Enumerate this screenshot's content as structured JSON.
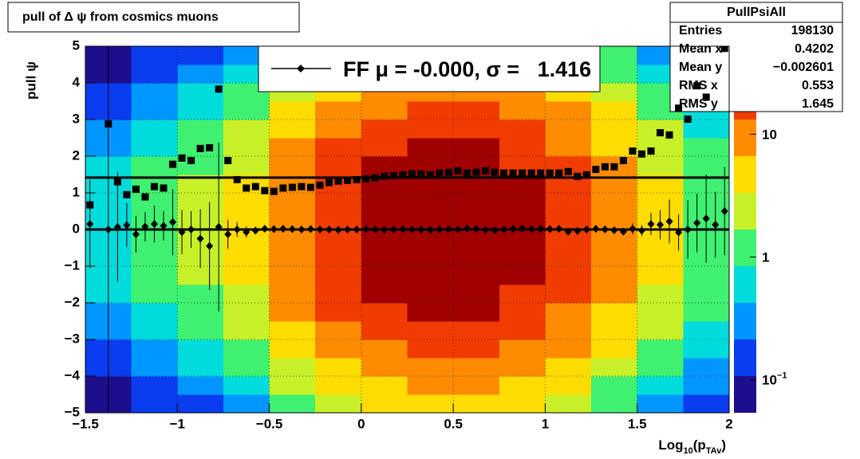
{
  "chart_data": {
    "type": "heatmap",
    "title": "pull of Δ ψ from cosmics muons",
    "ylabel": "pull ψ",
    "xlabel": [
      "Log",
      "10",
      "(p",
      "TAv",
      ")"
    ],
    "xlim": [
      -1.5,
      2
    ],
    "ylim": [
      -5,
      5
    ],
    "xticks": [
      {
        "value": -1.5,
        "label": "−1.5"
      },
      {
        "value": -1,
        "label": "−1"
      },
      {
        "value": -0.5,
        "label": "−0.5"
      },
      0,
      0.5,
      1,
      1.5,
      2
    ],
    "yticks": [
      {
        "value": -5,
        "label": "−5"
      },
      {
        "value": -4,
        "label": "−4"
      },
      {
        "value": -3,
        "label": "−3"
      },
      {
        "value": -2,
        "label": "−2"
      },
      {
        "value": -1,
        "label": "−1"
      },
      0,
      1,
      2,
      3,
      4,
      5
    ],
    "grid": true,
    "xbins": [
      -1.5,
      -1.25,
      -1,
      -0.75,
      -0.5,
      -0.25,
      0,
      0.25,
      0.5,
      0.75,
      1,
      1.25,
      1.5,
      1.75,
      2
    ],
    "ybins": [
      -5,
      -4.5,
      -4,
      -3.5,
      -3,
      -2.5,
      -2,
      -1.5,
      -1,
      -0.5,
      0,
      0.5,
      1,
      1.5,
      2,
      2.5,
      3,
      3.5,
      4,
      4.5,
      5
    ],
    "z": [
      [
        0.06,
        0.09,
        0.14,
        0.2,
        0.27,
        0.36,
        0.44,
        0.51,
        0.56,
        0.6,
        0.6,
        0.56,
        0.51,
        0.44,
        0.36,
        0.27,
        0.2,
        0.14,
        0.09,
        0.06
      ],
      [
        0.12,
        0.19,
        0.28,
        0.4,
        0.55,
        0.71,
        0.87,
        1,
        1.1,
        1.2,
        1.2,
        1.1,
        1,
        0.87,
        0.71,
        0.55,
        0.4,
        0.28,
        0.19,
        0.12
      ],
      [
        0.19,
        0.31,
        0.47,
        0.67,
        0.92,
        1.2,
        1.5,
        1.7,
        1.9,
        2,
        2,
        1.9,
        1.7,
        1.5,
        1.2,
        0.92,
        0.67,
        0.47,
        0.31,
        0.19
      ],
      [
        0.39,
        0.62,
        0.94,
        1.3,
        1.8,
        2.4,
        2.9,
        3.4,
        3.8,
        4,
        4,
        3.8,
        3.4,
        2.9,
        2.4,
        1.8,
        1.3,
        0.94,
        0.62,
        0.39
      ],
      [
        1.2,
        1.9,
        2.8,
        4,
        5.5,
        7.1,
        8.7,
        10,
        11,
        12,
        12,
        11,
        10,
        8.7,
        7.1,
        5.5,
        4,
        2.8,
        1.9,
        1.2
      ],
      [
        2.4,
        3.9,
        5.9,
        8.4,
        11,
        15,
        18,
        21,
        24,
        25,
        25,
        24,
        21,
        18,
        15,
        11,
        8.4,
        5.9,
        3.9,
        2.4
      ],
      [
        3.9,
        6.2,
        9.4,
        13,
        18,
        24,
        29,
        34,
        38,
        40,
        40,
        38,
        34,
        29,
        24,
        18,
        13,
        9.4,
        6.2,
        3.9
      ],
      [
        4.7,
        7.4,
        11,
        16,
        22,
        28,
        35,
        41,
        45,
        48,
        48,
        45,
        41,
        35,
        28,
        22,
        16,
        11,
        7.4,
        4.7
      ],
      [
        4.4,
        7,
        11,
        15,
        21,
        27,
        33,
        38,
        42,
        45,
        45,
        42,
        38,
        33,
        27,
        21,
        15,
        11,
        7,
        4.4
      ],
      [
        3.4,
        5.4,
        8.2,
        12,
        16,
        21,
        26,
        30,
        33,
        35,
        35,
        33,
        30,
        26,
        21,
        16,
        12,
        8.2,
        5.4,
        3.4
      ],
      [
        2.1,
        3.4,
        5.1,
        7.4,
        10,
        13,
        16,
        19,
        21,
        22,
        22,
        21,
        19,
        16,
        13,
        10,
        7.4,
        5.1,
        3.4,
        2.1
      ],
      [
        0.97,
        1.6,
        2.3,
        3.4,
        4.6,
        5.9,
        7.3,
        8.5,
        9.4,
        10,
        10,
        9.4,
        8.5,
        7.3,
        5.9,
        4.6,
        3.4,
        2.3,
        1.6,
        0.97
      ],
      [
        0.39,
        0.62,
        0.94,
        1.3,
        1.8,
        2.4,
        2.9,
        3.4,
        3.8,
        4,
        4,
        3.8,
        3.4,
        2.9,
        2.4,
        1.8,
        1.3,
        0.94,
        0.62,
        0.39
      ],
      [
        0.15,
        0.23,
        0.35,
        0.5,
        0.69,
        0.89,
        1.1,
        1.3,
        1.4,
        1.5,
        1.5,
        1.4,
        1.3,
        1.1,
        0.89,
        0.69,
        0.5,
        0.35,
        0.23,
        0.15
      ]
    ],
    "zlim": [
      0.054,
      52
    ],
    "zlog": true,
    "zticks": [
      {
        "value": 0.1,
        "label": "10",
        "exponent": "−1"
      },
      1,
      {
        "value": 10,
        "label": "10"
      }
    ],
    "palette": [
      "#1d0f8c",
      "#0a3cf0",
      "#0096ff",
      "#00dcdc",
      "#40f070",
      "#c8f028",
      "#ffdc00",
      "#ff8c00",
      "#f03c00",
      "#a00000"
    ],
    "series": [
      {
        "marker": "square",
        "color": "#000000",
        "x": [
          -1.475,
          -1.375,
          -1.325,
          -1.275,
          -1.225,
          -1.175,
          -1.125,
          -1.075,
          -1.025,
          -0.975,
          -0.925,
          -0.875,
          -0.825,
          -0.775,
          -0.725,
          -0.675,
          -0.625,
          -0.575,
          -0.525,
          -0.475,
          -0.425,
          -0.375,
          -0.325,
          -0.275,
          -0.225,
          -0.175,
          -0.125,
          -0.075,
          -0.025,
          0.025,
          0.075,
          0.125,
          0.175,
          0.225,
          0.275,
          0.325,
          0.375,
          0.425,
          0.475,
          0.525,
          0.575,
          0.625,
          0.675,
          0.725,
          0.775,
          0.825,
          0.875,
          0.925,
          0.975,
          1.025,
          1.075,
          1.125,
          1.175,
          1.225,
          1.275,
          1.325,
          1.375,
          1.425,
          1.475,
          1.525,
          1.575,
          1.625,
          1.675,
          1.725,
          1.775,
          1.825,
          1.875,
          1.975
        ],
        "values": [
          0.67,
          2.88,
          1.3,
          0.95,
          1.1,
          0.89,
          1.17,
          1.13,
          1.78,
          1.95,
          1.88,
          2.21,
          2.23,
          3.83,
          1.88,
          1.36,
          1.13,
          1.17,
          1.06,
          1.04,
          1.13,
          1.15,
          1.17,
          1.15,
          1.21,
          1.28,
          1.32,
          1.34,
          1.36,
          1.38,
          1.41,
          1.45,
          1.47,
          1.49,
          1.52,
          1.52,
          1.49,
          1.54,
          1.56,
          1.6,
          1.54,
          1.56,
          1.6,
          1.56,
          1.54,
          1.54,
          1.54,
          1.54,
          1.54,
          1.54,
          1.54,
          1.58,
          1.45,
          1.49,
          1.64,
          1.71,
          1.71,
          1.88,
          2.14,
          2.06,
          2.14,
          2.64,
          2.58,
          3.31,
          3.01,
          3.92,
          3.61,
          4.94
        ]
      },
      {
        "name": "FF μ = -0.000, σ =   1.416",
        "marker": "diamond",
        "color": "#000000",
        "x": [
          -1.475,
          -1.375,
          -1.325,
          -1.275,
          -1.225,
          -1.175,
          -1.125,
          -1.075,
          -1.025,
          -0.975,
          -0.925,
          -0.875,
          -0.825,
          -0.775,
          -0.725,
          -0.675,
          -0.625,
          -0.575,
          -0.525,
          -0.475,
          -0.425,
          -0.375,
          -0.325,
          -0.275,
          -0.225,
          -0.175,
          -0.125,
          -0.075,
          -0.025,
          0.025,
          0.075,
          0.125,
          0.175,
          0.225,
          0.275,
          0.325,
          0.375,
          0.425,
          0.475,
          0.525,
          0.575,
          0.625,
          0.675,
          0.725,
          0.775,
          0.825,
          0.875,
          0.925,
          0.975,
          1.025,
          1.075,
          1.125,
          1.175,
          1.225,
          1.275,
          1.325,
          1.375,
          1.425,
          1.475,
          1.525,
          1.575,
          1.625,
          1.675,
          1.725,
          1.775,
          1.825,
          1.875,
          1.925,
          1.975
        ],
        "values": [
          0.15,
          0.0,
          0.07,
          0.12,
          -0.13,
          0.08,
          0.15,
          0.1,
          0.2,
          -0.07,
          0.0,
          -0.25,
          -0.45,
          0.07,
          -0.13,
          0.0,
          -0.07,
          -0.03,
          0.02,
          0.01,
          0.02,
          0.01,
          0.0,
          0.01,
          0.0,
          0.0,
          -0.01,
          0.0,
          0.0,
          0.01,
          0.0,
          -0.01,
          0.0,
          0.01,
          0.0,
          0.0,
          -0.01,
          0.0,
          0.01,
          0.0,
          0.03,
          0.02,
          -0.01,
          -0.02,
          0.0,
          0.02,
          0.03,
          0.01,
          0.02,
          0.01,
          0.02,
          -0.06,
          -0.04,
          0.0,
          0.02,
          0.0,
          -0.02,
          -0.06,
          0.02,
          -0.03,
          0.15,
          0.13,
          0.22,
          -0.08,
          0.0,
          0.18,
          0.3,
          0.13,
          0.5
        ],
        "errors": [
          1.2,
          5,
          1.5,
          0.6,
          0.5,
          0.4,
          0.5,
          0.4,
          0.9,
          0.6,
          0.5,
          0.8,
          1.2,
          2.3,
          0.4,
          0.2,
          0.15,
          0.1,
          0.08,
          0.07,
          0.06,
          0.05,
          0.05,
          0.04,
          0.04,
          0.03,
          0.03,
          0.03,
          0.03,
          0.03,
          0.03,
          0.03,
          0.03,
          0.03,
          0.03,
          0.03,
          0.03,
          0.03,
          0.03,
          0.03,
          0.03,
          0.03,
          0.03,
          0.03,
          0.03,
          0.03,
          0.03,
          0.03,
          0.04,
          0.04,
          0.05,
          0.05,
          0.06,
          0.07,
          0.07,
          0.08,
          0.09,
          0.1,
          0.15,
          0.15,
          0.3,
          0.4,
          0.6,
          0.5,
          0.8,
          0.8,
          1.2,
          0.9,
          1.2
        ]
      }
    ],
    "fit_lines": [
      0,
      1.416
    ],
    "legend": {
      "corner": "top"
    },
    "stats": {
      "title": "PullPsiAll",
      "rows": [
        [
          "Entries",
          "198130"
        ],
        [
          "Mean x",
          "0.4202"
        ],
        [
          "Mean y",
          "−0.002601"
        ],
        [
          "RMS x",
          "0.553"
        ],
        [
          "RMS y",
          "1.645"
        ]
      ]
    }
  }
}
